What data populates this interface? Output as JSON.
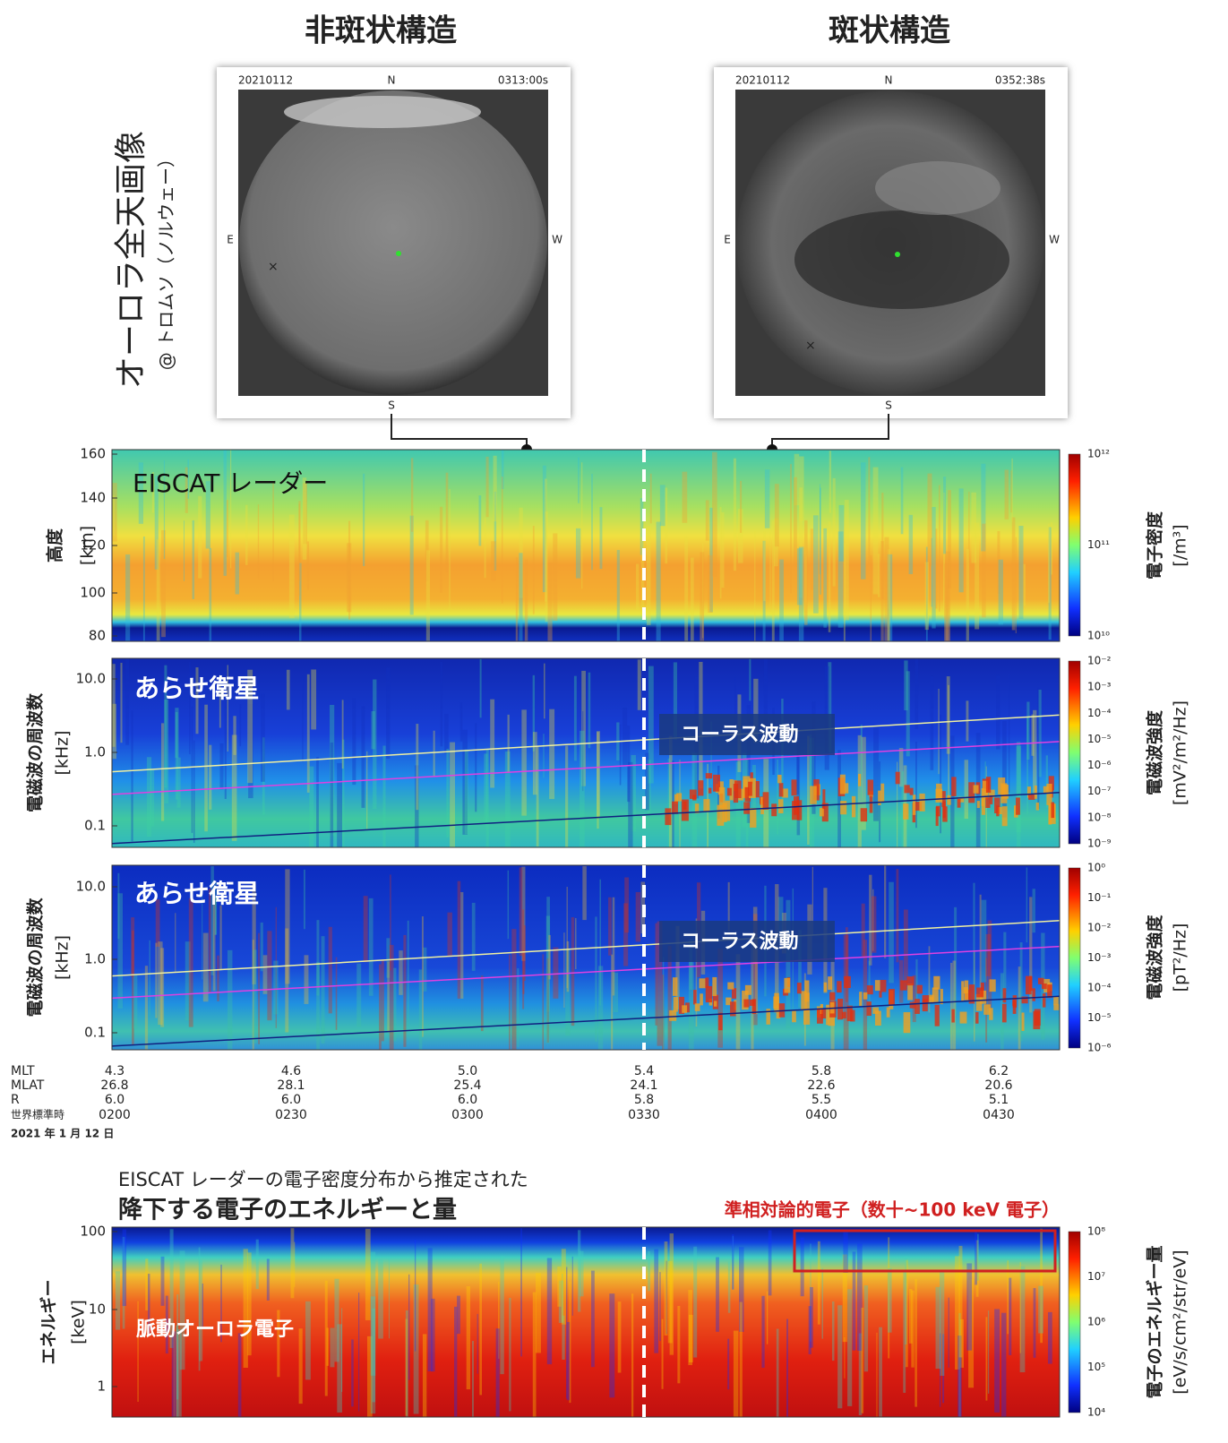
{
  "header": {
    "left_title": "非斑状構造",
    "right_title": "斑状構造",
    "vertical_title": "オーロラ全天画像",
    "vertical_subtitle": "@ トロムソ（ノルウェー）"
  },
  "images": [
    {
      "date": "20210112",
      "north": "N",
      "time": "0313:00s",
      "east": "E",
      "west": "W",
      "south": "S"
    },
    {
      "date": "20210112",
      "north": "N",
      "time": "0352:38s",
      "east": "E",
      "west": "W",
      "south": "S"
    }
  ],
  "panels": [
    {
      "label": "EISCAT レーダー",
      "y_label": "高度",
      "y_unit": "[km]",
      "y_ticks": [
        "160",
        "140",
        "120",
        "100",
        "80"
      ],
      "colorbar_ticks": [
        "10¹²",
        "10¹¹",
        "10¹⁰"
      ],
      "colorbar_label": "電子密度",
      "colorbar_unit": "[/m³]"
    },
    {
      "label": "あらせ衛星",
      "annotation": "コーラス波動",
      "y_label": "電磁波の周波数",
      "y_unit": "[kHz]",
      "y_ticks": [
        "10.0",
        "1.0",
        "0.1"
      ],
      "colorbar_ticks": [
        "10⁻²",
        "10⁻³",
        "10⁻⁴",
        "10⁻⁵",
        "10⁻⁶",
        "10⁻⁷",
        "10⁻⁸",
        "10⁻⁹"
      ],
      "colorbar_label": "電磁波強度",
      "colorbar_unit": "[mV²/m²/Hz]"
    },
    {
      "label": "あらせ衛星",
      "annotation": "コーラス波動",
      "y_label": "電磁波の周波数",
      "y_unit": "[kHz]",
      "y_ticks": [
        "10.0",
        "1.0",
        "0.1"
      ],
      "colorbar_ticks": [
        "10⁰",
        "10⁻¹",
        "10⁻²",
        "10⁻³",
        "10⁻⁴",
        "10⁻⁵",
        "10⁻⁶"
      ],
      "colorbar_label": "電磁波強度",
      "colorbar_unit": "[pT²/Hz]"
    },
    {
      "label": "脈動オーロラ電子",
      "y_label": "エネルギー",
      "y_unit": "[keV]",
      "y_ticks": [
        "100",
        "10",
        "1"
      ],
      "colorbar_ticks": [
        "10⁸",
        "10⁷",
        "10⁶",
        "10⁵",
        "10⁴"
      ],
      "colorbar_label": "電子のエネルギー量",
      "colorbar_unit": "[eV/s/cm²/str/eV]"
    }
  ],
  "time_axis": {
    "rows": [
      [
        "MLT",
        "4.3",
        "4.6",
        "5.0",
        "5.4",
        "5.8",
        "6.2"
      ],
      [
        "MLAT",
        "26.8",
        "28.1",
        "25.4",
        "24.1",
        "22.6",
        "20.6"
      ],
      [
        "R",
        "6.0",
        "6.0",
        "6.0",
        "5.8",
        "5.5",
        "5.1"
      ],
      [
        "世界標準時",
        "0200",
        "0230",
        "0300",
        "0330",
        "0400",
        "0430"
      ]
    ],
    "date": "2021 年 1 月 12 日"
  },
  "energy_section": {
    "caption": "EISCAT レーダーの電子密度分布から推定された",
    "title": "降下する電子のエネルギーと量",
    "annotation": "準相対論的電子（数十~100 keV 電子）"
  }
}
